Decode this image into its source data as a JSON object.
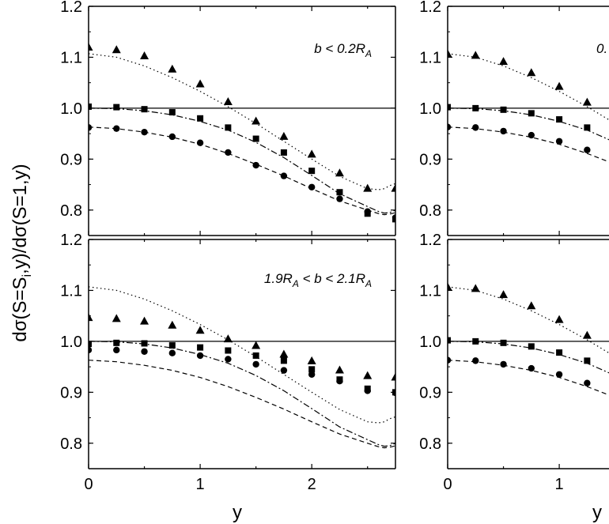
{
  "chart_data": [
    {
      "type": "scatter",
      "panel": "top-left",
      "label": "b < 0.2R",
      "label_sub": "A",
      "xlim": [
        0,
        2.75
      ],
      "ylim": [
        0.75,
        1.2
      ],
      "yticks": [
        "0.8",
        "0.9",
        "1.0",
        "1.1",
        "1.2"
      ],
      "xticks": [],
      "series": [
        {
          "name": "triangles",
          "marker": "triangle",
          "x": [
            0,
            0.25,
            0.5,
            0.75,
            1.0,
            1.25,
            1.5,
            1.75,
            2.0,
            2.25,
            2.5,
            2.75
          ],
          "y": [
            1.12,
            1.115,
            1.103,
            1.077,
            1.048,
            1.013,
            0.975,
            0.945,
            0.91,
            0.873,
            0.843,
            0.843
          ]
        },
        {
          "name": "squares",
          "marker": "square",
          "x": [
            0,
            0.25,
            0.5,
            0.75,
            1.0,
            1.25,
            1.5,
            1.75,
            2.0,
            2.25,
            2.5,
            2.75
          ],
          "y": [
            1.003,
            1.002,
            0.998,
            0.992,
            0.98,
            0.962,
            0.94,
            0.913,
            0.877,
            0.835,
            0.793,
            0.782
          ]
        },
        {
          "name": "circles",
          "marker": "circle",
          "x": [
            0,
            0.25,
            0.5,
            0.75,
            1.0,
            1.25,
            1.5,
            1.75,
            2.0,
            2.25,
            2.5,
            2.75
          ],
          "y": [
            0.962,
            0.96,
            0.953,
            0.944,
            0.932,
            0.913,
            0.888,
            0.867,
            0.845,
            0.822,
            0.797,
            0.785
          ]
        },
        {
          "name": "dotted curve",
          "line": "dotted",
          "x": [
            0,
            0.25,
            0.5,
            0.75,
            1.0,
            1.25,
            1.5,
            1.75,
            2.0,
            2.25,
            2.5,
            2.6,
            2.65,
            2.7,
            2.75
          ],
          "y": [
            1.107,
            1.1,
            1.083,
            1.06,
            1.033,
            1.003,
            0.97,
            0.935,
            0.9,
            0.866,
            0.842,
            0.84,
            0.842,
            0.848,
            0.852
          ]
        },
        {
          "name": "dash-dot curve",
          "line": "dashdot",
          "x": [
            0,
            0.25,
            0.5,
            0.75,
            1.0,
            1.25,
            1.5,
            1.75,
            2.0,
            2.25,
            2.5,
            2.6,
            2.65,
            2.7,
            2.75
          ],
          "y": [
            1.0,
            0.999,
            0.995,
            0.987,
            0.974,
            0.957,
            0.933,
            0.903,
            0.868,
            0.832,
            0.807,
            0.797,
            0.794,
            0.795,
            0.8
          ]
        },
        {
          "name": "dashed curve",
          "line": "dashed",
          "x": [
            0,
            0.25,
            0.5,
            0.75,
            1.0,
            1.25,
            1.5,
            1.75,
            2.0,
            2.25,
            2.5,
            2.6,
            2.65,
            2.7,
            2.75
          ],
          "y": [
            0.963,
            0.96,
            0.953,
            0.943,
            0.929,
            0.911,
            0.89,
            0.867,
            0.842,
            0.818,
            0.8,
            0.793,
            0.791,
            0.792,
            0.795
          ]
        }
      ]
    },
    {
      "type": "scatter",
      "panel": "top-right",
      "label": "0.",
      "label_sub": "",
      "xlim": [
        0,
        2.75
      ],
      "ylim": [
        0.75,
        1.2
      ],
      "yticks": [
        "0.8",
        "0.9",
        "1.0",
        "1.1",
        "1.2"
      ],
      "xticks": [],
      "series": [
        {
          "name": "triangles",
          "marker": "triangle",
          "x": [
            0,
            0.25,
            0.5,
            0.75,
            1.0,
            1.25
          ],
          "y": [
            1.107,
            1.104,
            1.092,
            1.07,
            1.043,
            1.012
          ]
        },
        {
          "name": "squares",
          "marker": "square",
          "x": [
            0,
            0.25,
            0.5,
            0.75,
            1.0,
            1.25
          ],
          "y": [
            1.002,
            1.0,
            0.997,
            0.99,
            0.978,
            0.962
          ]
        },
        {
          "name": "circles",
          "marker": "circle",
          "x": [
            0,
            0.25,
            0.5,
            0.75,
            1.0,
            1.25
          ],
          "y": [
            0.963,
            0.962,
            0.955,
            0.947,
            0.935,
            0.918
          ]
        },
        {
          "name": "dotted curve",
          "line": "dotted",
          "x": [
            0,
            0.25,
            0.5,
            0.75,
            1.0,
            1.25,
            1.5
          ],
          "y": [
            1.107,
            1.1,
            1.083,
            1.06,
            1.033,
            1.003,
            0.97
          ]
        },
        {
          "name": "dash-dot curve",
          "line": "dashdot",
          "x": [
            0,
            0.25,
            0.5,
            0.75,
            1.0,
            1.25,
            1.5
          ],
          "y": [
            1.0,
            0.999,
            0.995,
            0.987,
            0.974,
            0.957,
            0.933
          ]
        },
        {
          "name": "dashed curve",
          "line": "dashed",
          "x": [
            0,
            0.25,
            0.5,
            0.75,
            1.0,
            1.25,
            1.5
          ],
          "y": [
            0.963,
            0.96,
            0.953,
            0.943,
            0.929,
            0.911,
            0.89
          ]
        }
      ]
    },
    {
      "type": "scatter",
      "panel": "bottom-left",
      "label": "1.9R",
      "label_sub": "A",
      "label_rest": " < b < 2.1R",
      "label_sub2": "A",
      "xlim": [
        0,
        2.75
      ],
      "ylim": [
        0.75,
        1.2
      ],
      "yticks": [
        "0.8",
        "0.9",
        "1.0",
        "1.1",
        "1.2"
      ],
      "xticks": [
        "0",
        "1",
        "2"
      ],
      "series": [
        {
          "name": "triangles",
          "marker": "triangle",
          "x": [
            0,
            0.25,
            0.5,
            0.75,
            1.0,
            1.25,
            1.5,
            1.75,
            2.0,
            2.25,
            2.5,
            2.75
          ],
          "y": [
            1.047,
            1.045,
            1.04,
            1.032,
            1.022,
            1.005,
            0.992,
            0.975,
            0.962,
            0.944,
            0.933,
            0.93
          ]
        },
        {
          "name": "squares",
          "marker": "square",
          "x": [
            0,
            0.25,
            0.5,
            0.75,
            1.0,
            1.25,
            1.5,
            1.75,
            2.0,
            2.25,
            2.5,
            2.75
          ],
          "y": [
            0.995,
            0.997,
            0.996,
            0.992,
            0.988,
            0.982,
            0.972,
            0.962,
            0.945,
            0.925,
            0.907,
            0.9
          ]
        },
        {
          "name": "circles",
          "marker": "circle",
          "x": [
            0,
            0.25,
            0.5,
            0.75,
            1.0,
            1.25,
            1.5,
            1.75,
            2.0,
            2.25,
            2.5,
            2.75
          ],
          "y": [
            0.983,
            0.983,
            0.98,
            0.977,
            0.972,
            0.965,
            0.955,
            0.943,
            0.935,
            0.922,
            0.903,
            0.899
          ]
        },
        {
          "name": "dotted curve",
          "line": "dotted",
          "x": [
            0,
            0.25,
            0.5,
            0.75,
            1.0,
            1.25,
            1.5,
            1.75,
            2.0,
            2.25,
            2.5,
            2.6,
            2.65,
            2.7,
            2.75
          ],
          "y": [
            1.107,
            1.1,
            1.083,
            1.06,
            1.033,
            1.003,
            0.97,
            0.935,
            0.9,
            0.866,
            0.842,
            0.84,
            0.842,
            0.848,
            0.852
          ]
        },
        {
          "name": "dash-dot curve",
          "line": "dashdot",
          "x": [
            0,
            0.25,
            0.5,
            0.75,
            1.0,
            1.25,
            1.5,
            1.75,
            2.0,
            2.25,
            2.5,
            2.6,
            2.65,
            2.7,
            2.75
          ],
          "y": [
            1.0,
            0.999,
            0.995,
            0.987,
            0.974,
            0.957,
            0.933,
            0.903,
            0.868,
            0.832,
            0.807,
            0.797,
            0.794,
            0.795,
            0.8
          ]
        },
        {
          "name": "dashed curve",
          "line": "dashed",
          "x": [
            0,
            0.25,
            0.5,
            0.75,
            1.0,
            1.25,
            1.5,
            1.75,
            2.0,
            2.25,
            2.5,
            2.6,
            2.65,
            2.7,
            2.75
          ],
          "y": [
            0.963,
            0.96,
            0.953,
            0.943,
            0.929,
            0.911,
            0.89,
            0.867,
            0.842,
            0.818,
            0.8,
            0.793,
            0.791,
            0.792,
            0.795
          ]
        }
      ]
    },
    {
      "type": "scatter",
      "panel": "bottom-right",
      "label": "",
      "label_sub": "",
      "xlim": [
        0,
        2.75
      ],
      "ylim": [
        0.75,
        1.2
      ],
      "yticks": [
        "0.8",
        "0.9",
        "1.0",
        "1.1",
        "1.2"
      ],
      "xticks": [
        "0",
        "1"
      ],
      "series": [
        {
          "name": "triangles",
          "marker": "triangle",
          "x": [
            0,
            0.25,
            0.5,
            0.75,
            1.0,
            1.25
          ],
          "y": [
            1.107,
            1.104,
            1.092,
            1.07,
            1.043,
            1.012
          ]
        },
        {
          "name": "squares",
          "marker": "square",
          "x": [
            0,
            0.25,
            0.5,
            0.75,
            1.0,
            1.25
          ],
          "y": [
            1.002,
            1.0,
            0.997,
            0.99,
            0.978,
            0.962
          ]
        },
        {
          "name": "circles",
          "marker": "circle",
          "x": [
            0,
            0.25,
            0.5,
            0.75,
            1.0,
            1.25
          ],
          "y": [
            0.963,
            0.962,
            0.955,
            0.947,
            0.935,
            0.918
          ]
        },
        {
          "name": "dotted curve",
          "line": "dotted",
          "x": [
            0,
            0.25,
            0.5,
            0.75,
            1.0,
            1.25,
            1.5
          ],
          "y": [
            1.107,
            1.1,
            1.083,
            1.06,
            1.033,
            1.003,
            0.97
          ]
        },
        {
          "name": "dash-dot curve",
          "line": "dashdot",
          "x": [
            0,
            0.25,
            0.5,
            0.75,
            1.0,
            1.25,
            1.5
          ],
          "y": [
            1.0,
            0.999,
            0.995,
            0.987,
            0.974,
            0.957,
            0.933
          ]
        },
        {
          "name": "dashed curve",
          "line": "dashed",
          "x": [
            0,
            0.25,
            0.5,
            0.75,
            1.0,
            1.25,
            1.5
          ],
          "y": [
            0.963,
            0.96,
            0.953,
            0.943,
            0.929,
            0.911,
            0.89
          ]
        }
      ]
    }
  ],
  "axes": {
    "ylabel": "dσ(S=S",
    "ylabel_sub": "i",
    "ylabel_rest": ",y)/dσ(S=1,y)",
    "xlabel_left": "y",
    "xlabel_right": "y"
  }
}
